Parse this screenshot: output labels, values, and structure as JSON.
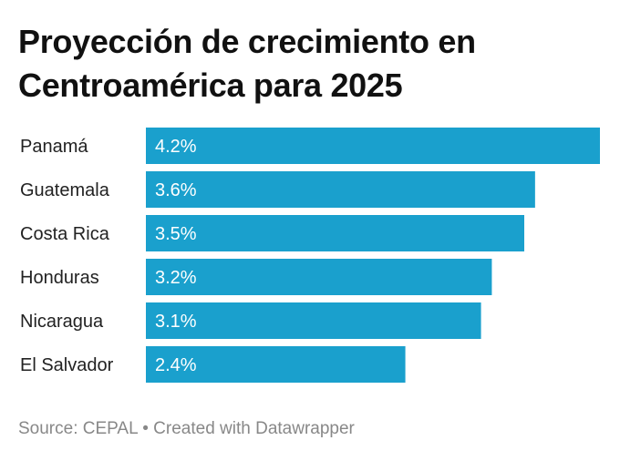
{
  "title": "Proyección de crecimiento en Centroamérica para 2025",
  "footer": {
    "source": "Source: CEPAL",
    "separator": "•",
    "credit": "Created with Datawrapper"
  },
  "colors": {
    "bar": "#1aa0cd",
    "bar_label": "#ffffff",
    "category_label": "#222222",
    "footer": "#888888"
  },
  "chart_data": {
    "type": "bar",
    "orientation": "horizontal",
    "title": "Proyección de crecimiento en Centroamérica para 2025",
    "categories": [
      "Panamá",
      "Guatemala",
      "Costa Rica",
      "Honduras",
      "Nicaragua",
      "El Salvador"
    ],
    "values": [
      4.2,
      3.6,
      3.5,
      3.2,
      3.1,
      2.4
    ],
    "value_labels": [
      "4.2%",
      "3.6%",
      "3.5%",
      "3.2%",
      "3.1%",
      "2.4%"
    ],
    "xlim": [
      0,
      4.2
    ],
    "grid": false,
    "legend": "none"
  }
}
